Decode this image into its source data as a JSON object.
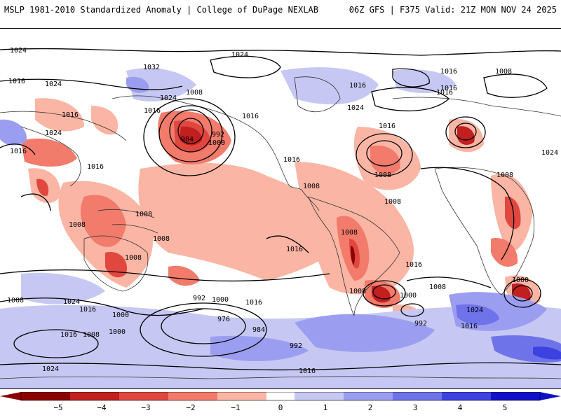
{
  "header": {
    "title_left": "MSLP 1981-2010 Standardized Anomaly | College of DuPage NEXLAB",
    "title_right": "06Z GFS | F375 Valid: 21Z MON NOV 24 2025"
  },
  "colors": {
    "neg5": "#8b0000",
    "neg4": "#c21f1f",
    "neg3": "#e0473f",
    "neg2": "#f27b6b",
    "neg1": "#fbb5a4",
    "zero": "#ffffff",
    "pos1": "#c6c8f3",
    "pos2": "#9b9ef0",
    "pos3": "#6f73ea",
    "pos4": "#3c41e0",
    "pos5": "#1010c8"
  },
  "colorbar": {
    "labels": [
      "−5",
      "−4",
      "−3",
      "−2",
      "−1",
      "0",
      "1",
      "2",
      "3",
      "4",
      "5"
    ]
  },
  "isobar_labels": [
    "1024",
    "1032",
    "1016",
    "1024",
    "1024",
    "1008",
    "1016",
    "1016",
    "1024",
    "1016",
    "1016",
    "1008",
    "1008",
    "1008",
    "1008",
    "984",
    "992",
    "1000",
    "1016",
    "1024",
    "1016",
    "1016",
    "1016",
    "1008",
    "1024",
    "1008",
    "1008",
    "1008",
    "1016",
    "1016",
    "1016",
    "1024",
    "1008",
    "1016",
    "1008",
    "1000",
    "1008",
    "1016",
    "1000",
    "1024",
    "1016",
    "1008",
    "992",
    "1000",
    "1016",
    "1024",
    "1016",
    "992",
    "1008",
    "1000",
    "976",
    "984",
    "992",
    "1000",
    "1008",
    "1016",
    "1024",
    "1016"
  ]
}
